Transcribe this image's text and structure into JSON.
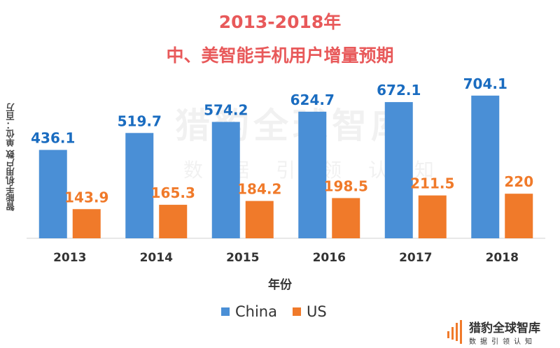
{
  "chart_data": {
    "type": "bar",
    "title": "2013-2018年",
    "subtitle": "中、美智能手机用户增量预期",
    "xlabel": "年份",
    "ylabel": "智能手机用户数 单位：百万",
    "categories": [
      "2013",
      "2014",
      "2015",
      "2016",
      "2017",
      "2018"
    ],
    "series": [
      {
        "name": "China",
        "values": [
          436.1,
          519.7,
          574.2,
          624.7,
          672.1,
          704.1
        ],
        "color": "#4a8fd6",
        "label_color": "#1a6cc0"
      },
      {
        "name": "US",
        "values": [
          143.9,
          165.3,
          184.2,
          198.5,
          211.5,
          220
        ],
        "color": "#f07a2a",
        "label_color": "#f07a2a"
      }
    ],
    "value_labels": [
      [
        "436.1",
        "519.7",
        "574.2",
        "624.7",
        "672.1",
        "704.1"
      ],
      [
        "143.9",
        "165.3",
        "184.2",
        "198.5",
        "211.5",
        "220"
      ]
    ],
    "ylim": [
      0,
      800
    ],
    "grid": false,
    "legend": "bottom"
  },
  "watermark": {
    "name": "猎豹全球智库",
    "slogan": "数据引领认知"
  },
  "logo": {
    "name": "猎豹全球智库",
    "slogan": "数据引领认知"
  }
}
